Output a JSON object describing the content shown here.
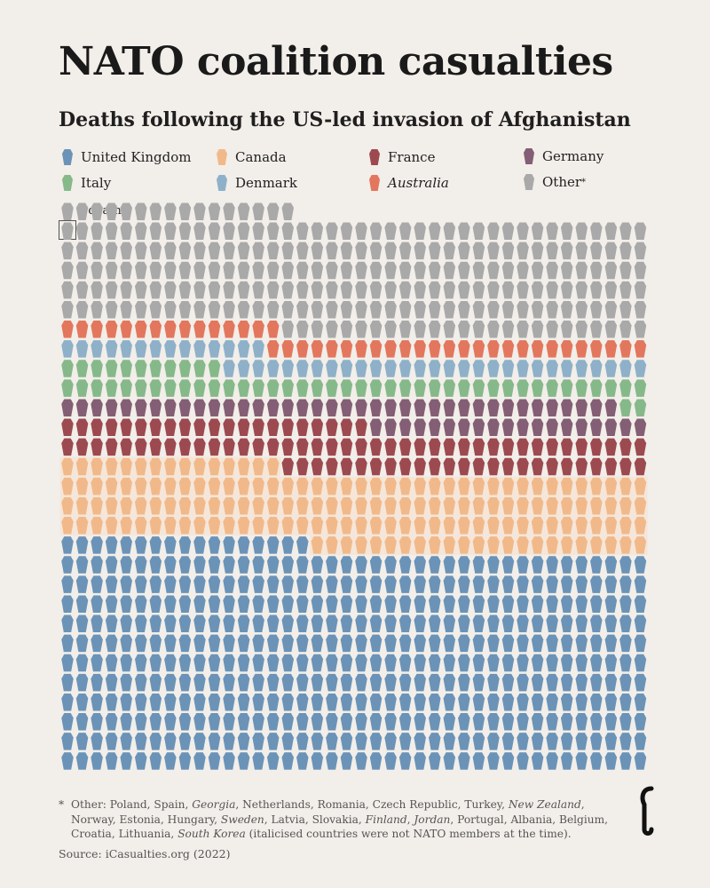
{
  "header": {
    "title": "NATO coalition casualties",
    "subtitle": "Deaths following the US-led invasion of Afghanistan"
  },
  "legend": {
    "items": [
      {
        "key": "uk",
        "label": "United Kingdom",
        "italic": false,
        "star": false
      },
      {
        "key": "canada",
        "label": "Canada",
        "italic": false,
        "star": false
      },
      {
        "key": "france",
        "label": "France",
        "italic": false,
        "star": false
      },
      {
        "key": "germany",
        "label": "Germany",
        "italic": false,
        "star": false
      },
      {
        "key": "italy",
        "label": "Italy",
        "italic": false,
        "star": false
      },
      {
        "key": "denmark",
        "label": "Denmark",
        "italic": false,
        "star": false
      },
      {
        "key": "australia",
        "label": "Australia",
        "italic": true,
        "star": false
      },
      {
        "key": "other",
        "label": "Other",
        "italic": false,
        "star": true
      }
    ],
    "unit_note": "= 1 death"
  },
  "colors": {
    "uk": "#6b93b7",
    "canada": "#f1b98a",
    "france": "#9c4a50",
    "germany": "#845e74",
    "italy": "#86b98a",
    "denmark": "#8fb0c9",
    "australia": "#e2775d",
    "other": "#a9a9a9",
    "canada_band": "#f8e0cc",
    "background": "#f2eee9"
  },
  "chart_data": {
    "type": "waffle",
    "unit": "1 death per icon",
    "columns": 40,
    "fill_order": "bottom-up, row-wise left to right",
    "series": [
      {
        "name": "United Kingdom",
        "key": "uk",
        "values": [
          457
        ]
      },
      {
        "name": "Canada",
        "key": "canada",
        "values": [
          158
        ]
      },
      {
        "name": "France",
        "key": "france",
        "values": [
          86
        ]
      },
      {
        "name": "Germany",
        "key": "germany",
        "values": [
          57
        ]
      },
      {
        "name": "Italy",
        "key": "italy",
        "values": [
          53
        ]
      },
      {
        "name": "Denmark",
        "key": "denmark",
        "values": [
          43
        ]
      },
      {
        "name": "Australia",
        "key": "australia",
        "values": [
          41
        ]
      },
      {
        "name": "Other",
        "key": "other",
        "values": [
          241
        ]
      }
    ]
  },
  "footnote": {
    "star": "*",
    "segments": [
      {
        "text": "Other: Poland, Spain, ",
        "italic": false
      },
      {
        "text": "Georgia",
        "italic": true
      },
      {
        "text": ", Netherlands, Romania, Czech Republic, Turkey, ",
        "italic": false
      },
      {
        "text": "New Zealand",
        "italic": true
      },
      {
        "text": ", Norway, Estonia, Hungary, ",
        "italic": false
      },
      {
        "text": "Sweden",
        "italic": true
      },
      {
        "text": ", Latvia, Slovakia, ",
        "italic": false
      },
      {
        "text": "Finland",
        "italic": true
      },
      {
        "text": ", ",
        "italic": false
      },
      {
        "text": "Jordan",
        "italic": true
      },
      {
        "text": ", Portugal, Albania, Belgium, Croatia, Lithuania, ",
        "italic": false
      },
      {
        "text": "South Korea",
        "italic": true
      },
      {
        "text": " (italicised countries were not NATO members at the time).",
        "italic": false
      }
    ]
  },
  "source": "Source: iCasualties.org (2022)",
  "brand": {
    "logo_icon": "icasualties-logo-icon"
  }
}
